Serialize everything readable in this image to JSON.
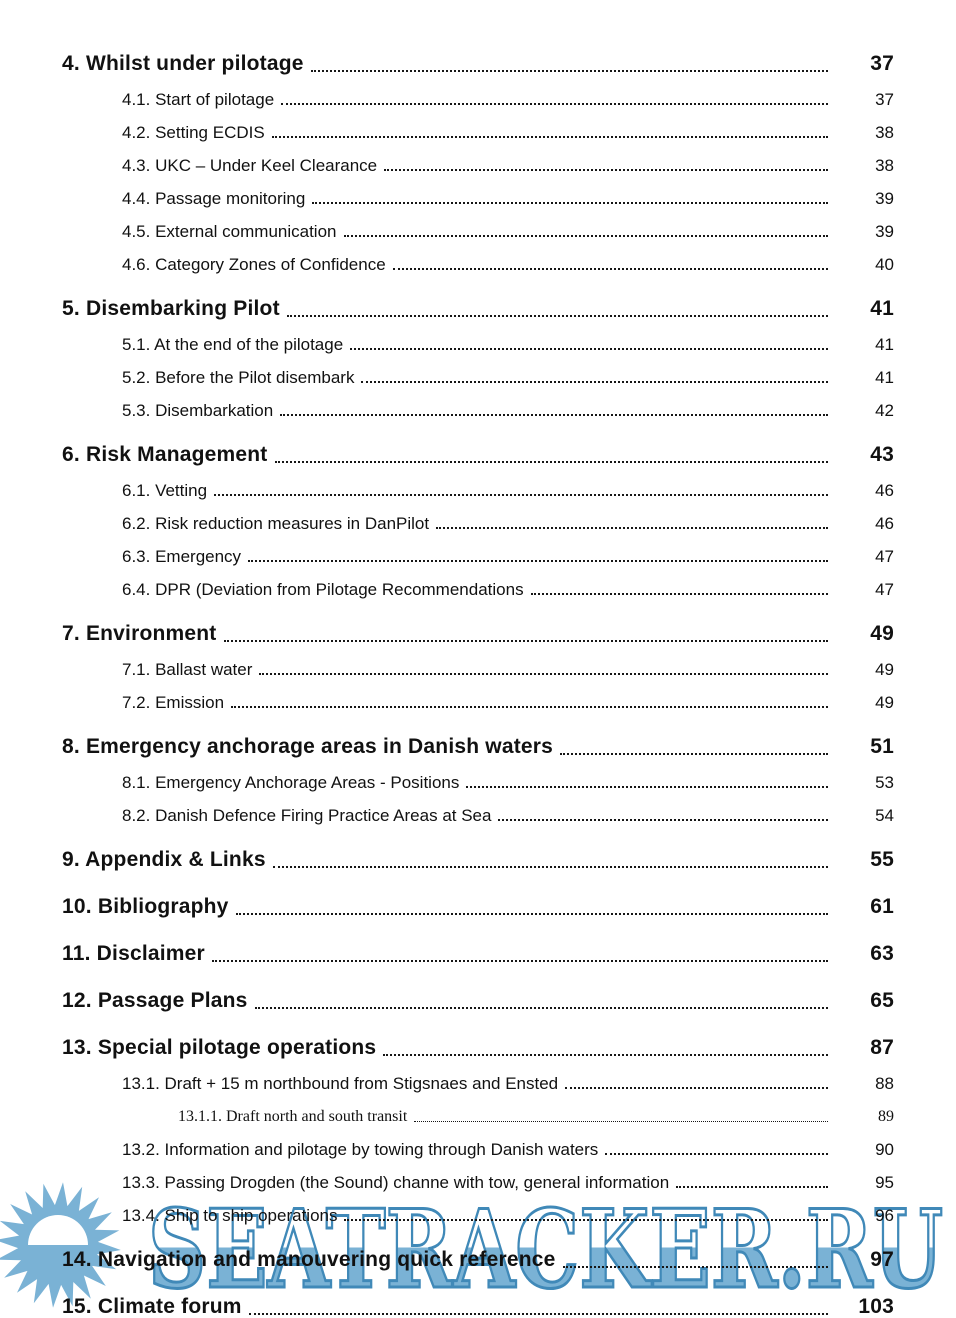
{
  "page": {
    "background": "#ffffff",
    "text_color": "#111111"
  },
  "watermark": {
    "text": "SEATRACKER.RU",
    "fill_color": "#7ab2d5",
    "outline_color": "#4089b8",
    "sun_color": "#7ab2d5",
    "dome_color": "#ffffff"
  },
  "toc": {
    "entries": [
      {
        "level": 1,
        "label": "4. Whilst under pilotage",
        "page": "37"
      },
      {
        "level": 2,
        "label": "4.1. Start of pilotage",
        "page": "37"
      },
      {
        "level": 2,
        "label": "4.2. Setting ECDIS",
        "page": "38"
      },
      {
        "level": 2,
        "label": "4.3. UKC – Under Keel Clearance",
        "page": "38"
      },
      {
        "level": 2,
        "label": "4.4. Passage monitoring",
        "page": "39"
      },
      {
        "level": 2,
        "label": "4.5. External communication",
        "page": "39"
      },
      {
        "level": 2,
        "label": "4.6. Category Zones of Confidence",
        "page": "40"
      },
      {
        "level": 1,
        "label": "5. Disembarking Pilot",
        "page": "41"
      },
      {
        "level": 2,
        "label": "5.1. At the end of the pilotage",
        "page": "41"
      },
      {
        "level": 2,
        "label": "5.2. Before the Pilot disembark",
        "page": "41"
      },
      {
        "level": 2,
        "label": "5.3. Disembarkation",
        "page": "42"
      },
      {
        "level": 1,
        "label": "6. Risk Management",
        "page": "43"
      },
      {
        "level": 2,
        "label": "6.1. Vetting",
        "page": "46"
      },
      {
        "level": 2,
        "label": "6.2. Risk reduction measures in DanPilot",
        "page": "46"
      },
      {
        "level": 2,
        "label": "6.3. Emergency",
        "page": "47"
      },
      {
        "level": 2,
        "label": "6.4. DPR (Deviation from Pilotage Recommendations",
        "page": "47"
      },
      {
        "level": 1,
        "label": "7. Environment",
        "page": "49"
      },
      {
        "level": 2,
        "label": "7.1. Ballast water",
        "page": "49"
      },
      {
        "level": 2,
        "label": "7.2. Emission",
        "page": "49"
      },
      {
        "level": 1,
        "label": "8. Emergency anchorage areas in Danish waters",
        "page": "51"
      },
      {
        "level": 2,
        "label": "8.1. Emergency Anchorage Areas - Positions",
        "page": "53"
      },
      {
        "level": 2,
        "label": "8.2. Danish Defence Firing Practice Areas at Sea",
        "page": "54"
      },
      {
        "level": 1,
        "label": "9. Appendix & Links",
        "page": "55"
      },
      {
        "level": 1,
        "label": "10. Bibliography",
        "page": "61"
      },
      {
        "level": 1,
        "label": "11. Disclaimer",
        "page": "63"
      },
      {
        "level": 1,
        "label": "12. Passage Plans",
        "page": "65"
      },
      {
        "level": 1,
        "label": "13. Special pilotage operations",
        "page": "87"
      },
      {
        "level": 2,
        "label": "13.1. Draft + 15 m northbound from Stigsnaes and Ensted",
        "page": "88"
      },
      {
        "level": 3,
        "label": "13.1.1. Draft north and south transit",
        "page": "89"
      },
      {
        "level": 2,
        "label": "13.2.  Information and pilotage by towing through Danish waters",
        "page": "90"
      },
      {
        "level": 2,
        "label": "13.3. Passing Drogden (the Sound) channe with tow, general information",
        "page": "95"
      },
      {
        "level": 2,
        "label": "13.4. Ship to ship operations",
        "page": "96"
      },
      {
        "level": 1,
        "label": "14. Navigation and manouvering quick reference",
        "page": "97"
      },
      {
        "level": 1,
        "label": "15. Climate forum",
        "page": "103"
      }
    ]
  }
}
